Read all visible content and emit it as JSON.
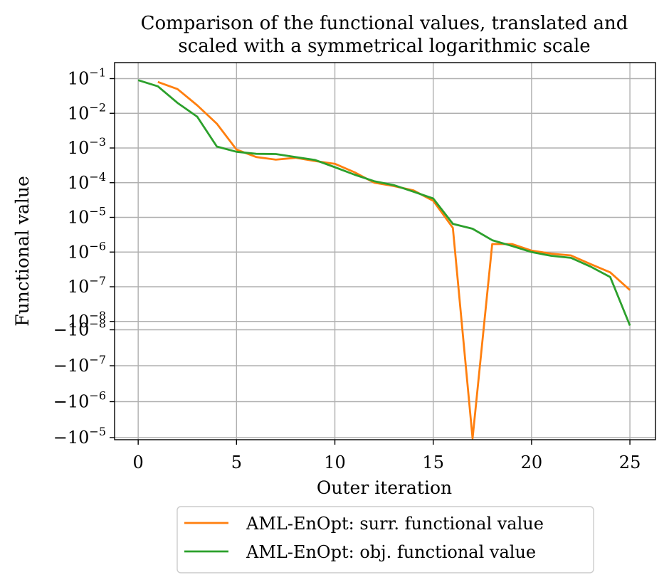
{
  "chart_data": {
    "type": "line",
    "title": "Comparison of the functional values, translated and scaled with a symmetrical logarithmic scale",
    "title_lines": [
      "Comparison of the functional values, translated and",
      "scaled with a symmetrical logarithmic scale"
    ],
    "xlabel": "Outer iteration",
    "ylabel": "Functional value",
    "xlim": [
      -1.2,
      26.3
    ],
    "x_ticks": [
      0,
      5,
      10,
      15,
      20,
      25
    ],
    "y_scale": "symlog",
    "y_ticks": [
      {
        "sign": "",
        "exp": "−1",
        "value": 0.1
      },
      {
        "sign": "",
        "exp": "−2",
        "value": 0.01
      },
      {
        "sign": "",
        "exp": "−3",
        "value": 0.001
      },
      {
        "sign": "",
        "exp": "−4",
        "value": 0.0001
      },
      {
        "sign": "",
        "exp": "−5",
        "value": 1e-05
      },
      {
        "sign": "",
        "exp": "−6",
        "value": 1e-06
      },
      {
        "sign": "",
        "exp": "−7",
        "value": 1e-07
      },
      {
        "sign": "",
        "exp": "−8",
        "value": 1e-08
      },
      {
        "sign": "−",
        "exp": "−8",
        "value": -1e-08
      },
      {
        "sign": "−",
        "exp": "−7",
        "value": -1e-07
      },
      {
        "sign": "−",
        "exp": "−6",
        "value": -1e-06
      },
      {
        "sign": "−",
        "exp": "−5",
        "value": -1e-05
      }
    ],
    "grid": true,
    "legend_position": "below",
    "series": [
      {
        "name": "AML-EnOpt: surr. functional value",
        "color": "#ff7f0e",
        "x": [
          1,
          2,
          3,
          4,
          5,
          6,
          7,
          8,
          9,
          10,
          11,
          12,
          13,
          14,
          15,
          16,
          17,
          18,
          19,
          20,
          21,
          22,
          23,
          24,
          25
        ],
        "values": [
          0.08,
          0.05,
          0.017,
          0.005,
          0.0009,
          0.00055,
          0.00046,
          0.00052,
          0.00042,
          0.00035,
          0.0002,
          0.0001,
          8e-05,
          6e-05,
          3e-05,
          5e-06,
          -1.05e-05,
          1.7e-06,
          1.7e-06,
          1.1e-06,
          9e-07,
          8e-07,
          4.5e-07,
          2.6e-07,
          8e-08
        ]
      },
      {
        "name": "AML-EnOpt: obj. functional value",
        "color": "#2ca02c",
        "x": [
          0,
          1,
          2,
          3,
          4,
          5,
          6,
          7,
          8,
          9,
          10,
          11,
          12,
          13,
          14,
          15,
          16,
          17,
          18,
          19,
          20,
          21,
          22,
          23,
          24,
          25
        ],
        "values": [
          0.09,
          0.06,
          0.02,
          0.008,
          0.0011,
          0.00078,
          0.00068,
          0.00067,
          0.00055,
          0.00045,
          0.00028,
          0.00017,
          0.00011,
          8.5e-05,
          5.5e-05,
          3.5e-05,
          6.5e-06,
          4.7e-06,
          2.2e-06,
          1.5e-06,
          1e-06,
          7.8e-07,
          6.8e-07,
          3.8e-07,
          1.9e-07,
          0
        ]
      }
    ]
  }
}
